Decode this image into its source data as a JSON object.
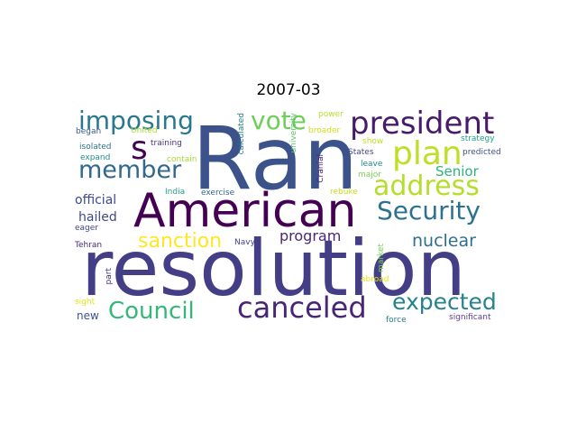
{
  "title": "2007-03",
  "words": [
    {
      "text": "Ran",
      "color": "#3b528b"
    },
    {
      "text": "resolution",
      "color": "#433e85"
    },
    {
      "text": "American",
      "color": "#440154"
    },
    {
      "text": "president",
      "color": "#481a6c"
    },
    {
      "text": "Security",
      "color": "#2c728e"
    },
    {
      "text": "address",
      "color": "#b5de2b"
    },
    {
      "text": "plan",
      "color": "#bddf26"
    },
    {
      "text": "canceled",
      "color": "#482576"
    },
    {
      "text": "Council",
      "color": "#35b779"
    },
    {
      "text": "expected",
      "color": "#26828e"
    },
    {
      "text": "vote",
      "color": "#6ece58"
    },
    {
      "text": "imposing",
      "color": "#2a788e"
    },
    {
      "text": "member",
      "color": "#31688e"
    },
    {
      "text": "s",
      "color": "#440154"
    },
    {
      "text": "sanction",
      "color": "#fde725"
    },
    {
      "text": "nuclear",
      "color": "#2d708e"
    },
    {
      "text": "program",
      "color": "#482878"
    },
    {
      "text": "Senior",
      "color": "#2db27d"
    },
    {
      "text": "official",
      "color": "#3e4a89"
    },
    {
      "text": "hailed",
      "color": "#3e4989"
    },
    {
      "text": "calculated",
      "color": "#27808e"
    },
    {
      "text": "university",
      "color": "#5ac864"
    },
    {
      "text": "power",
      "color": "#b8de29"
    },
    {
      "text": "broader",
      "color": "#d0e11c"
    },
    {
      "text": "show",
      "color": "#c2df23"
    },
    {
      "text": "strategy",
      "color": "#1fa187"
    },
    {
      "text": "predicted",
      "color": "#3b528b"
    },
    {
      "text": "began",
      "color": "#38598c"
    },
    {
      "text": "United",
      "color": "#a8db34"
    },
    {
      "text": "training",
      "color": "#46337e"
    },
    {
      "text": "isolated",
      "color": "#2c728e"
    },
    {
      "text": "expand",
      "color": "#21918c"
    },
    {
      "text": "contain",
      "color": "#a0da39"
    },
    {
      "text": "States",
      "color": "#3f4788"
    },
    {
      "text": "leave",
      "color": "#238a8d"
    },
    {
      "text": "major",
      "color": "#7ad151"
    },
    {
      "text": "Cranial",
      "color": "#481c6e"
    },
    {
      "text": "exercise",
      "color": "#31688e"
    },
    {
      "text": "India",
      "color": "#1fa188"
    },
    {
      "text": "rebuke",
      "color": "#c8e020"
    },
    {
      "text": "eager",
      "color": "#404688"
    },
    {
      "text": "Navy",
      "color": "#414487"
    },
    {
      "text": "Tehran",
      "color": "#482979"
    },
    {
      "text": "market",
      "color": "#75d054"
    },
    {
      "text": "part",
      "color": "#46327e"
    },
    {
      "text": "abroad",
      "color": "#e5e419"
    },
    {
      "text": "sight",
      "color": "#e2e418"
    },
    {
      "text": "new",
      "color": "#3b528b"
    },
    {
      "text": "force",
      "color": "#287c8e"
    },
    {
      "text": "significant",
      "color": "#5e3c99"
    }
  ]
}
